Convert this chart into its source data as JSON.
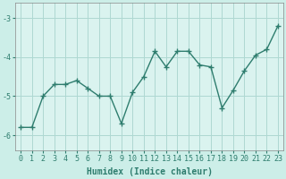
{
  "x": [
    0,
    1,
    2,
    3,
    4,
    5,
    6,
    7,
    8,
    9,
    10,
    11,
    12,
    13,
    14,
    15,
    16,
    17,
    18,
    19,
    20,
    21,
    22,
    23
  ],
  "y": [
    -5.8,
    -5.8,
    -5.0,
    -4.7,
    -4.7,
    -4.6,
    -4.8,
    -5.0,
    -5.0,
    -5.7,
    -4.9,
    -4.5,
    -3.85,
    -4.25,
    -3.85,
    -3.85,
    -4.2,
    -4.25,
    -5.3,
    -4.85,
    -4.35,
    -3.95,
    -3.8,
    -3.2
  ],
  "line_color": "#2e7d6e",
  "marker": "+",
  "markersize": 4,
  "linewidth": 1.0,
  "xlabel": "Humidex (Indice chaleur)",
  "xlabel_fontsize": 7,
  "bg_color": "#cceee8",
  "grid_color": "#aed8d2",
  "axis_bg": "#daf3ef",
  "ylim": [
    -6.4,
    -2.6
  ],
  "yticks": [
    -6,
    -5,
    -4,
    -3
  ],
  "xlim": [
    -0.5,
    23.5
  ],
  "xticks": [
    0,
    1,
    2,
    3,
    4,
    5,
    6,
    7,
    8,
    9,
    10,
    11,
    12,
    13,
    14,
    15,
    16,
    17,
    18,
    19,
    20,
    21,
    22,
    23
  ],
  "tick_fontsize": 6,
  "ylabel_fontsize": 7
}
